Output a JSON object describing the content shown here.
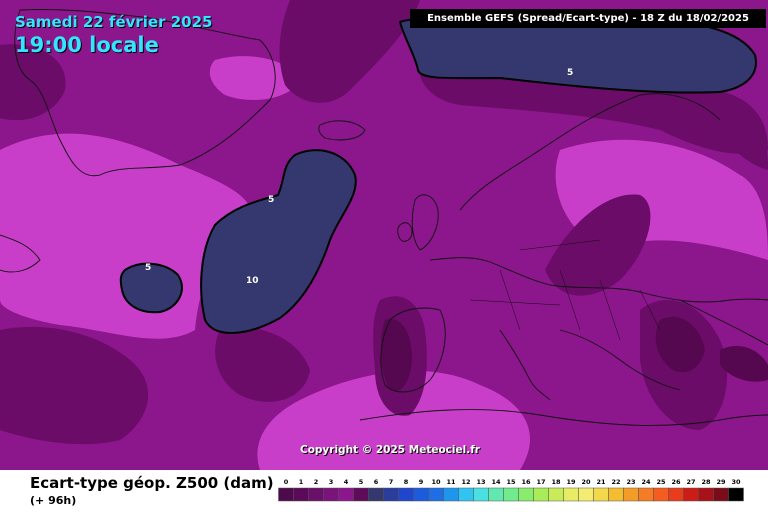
{
  "header": {
    "date": "Samedi 22 février 2025",
    "time": "19:00 locale",
    "model_title": "Ensemble GEFS  (Spread/Ecart-type) - 18 Z du 18/02/2025"
  },
  "map": {
    "copyright": "Copyright © 2025 Meteociel.fr",
    "contour_labels": [
      "5",
      "5",
      "5",
      "10"
    ],
    "colors": {
      "background": "#8c168c",
      "bright": "#c83ec8",
      "dark": "#6a0c68",
      "darker": "#55084f",
      "spread5": "#35386e",
      "blue1": "#2a3c9c",
      "blue2": "#1f46cc",
      "blue3": "#1e6ee6",
      "cyan": "#1e96ee",
      "coast": "#111111"
    }
  },
  "footer": {
    "variable_title": "Ecart-type géop. Z500 (dam)",
    "lead_time": "(+ 96h)"
  },
  "scale": {
    "labels": [
      "0",
      "1",
      "2",
      "3",
      "4",
      "5",
      "6",
      "7",
      "8",
      "9",
      "10",
      "11",
      "12",
      "13",
      "14",
      "15",
      "16",
      "17",
      "18",
      "19",
      "20",
      "21",
      "22",
      "23",
      "24",
      "25",
      "26",
      "27",
      "28",
      "29",
      "30"
    ],
    "colors": [
      "#4e0a4a",
      "#5a0a58",
      "#6a1068",
      "#7a147a",
      "#8c168c",
      "#5e0c5a",
      "#35386e",
      "#2a3c9c",
      "#1f46cc",
      "#1e5adc",
      "#1e6ee6",
      "#1e96ee",
      "#30c4f0",
      "#48e0e0",
      "#60e8b0",
      "#70ec8c",
      "#88ec6c",
      "#a8ec58",
      "#c8ec58",
      "#e8ec64",
      "#f4ec70",
      "#f4d84c",
      "#f4bc30",
      "#f49c28",
      "#f47c24",
      "#f45c20",
      "#e83c1c",
      "#cc1c18",
      "#a8101a",
      "#7a0c1a",
      "#000000"
    ]
  }
}
